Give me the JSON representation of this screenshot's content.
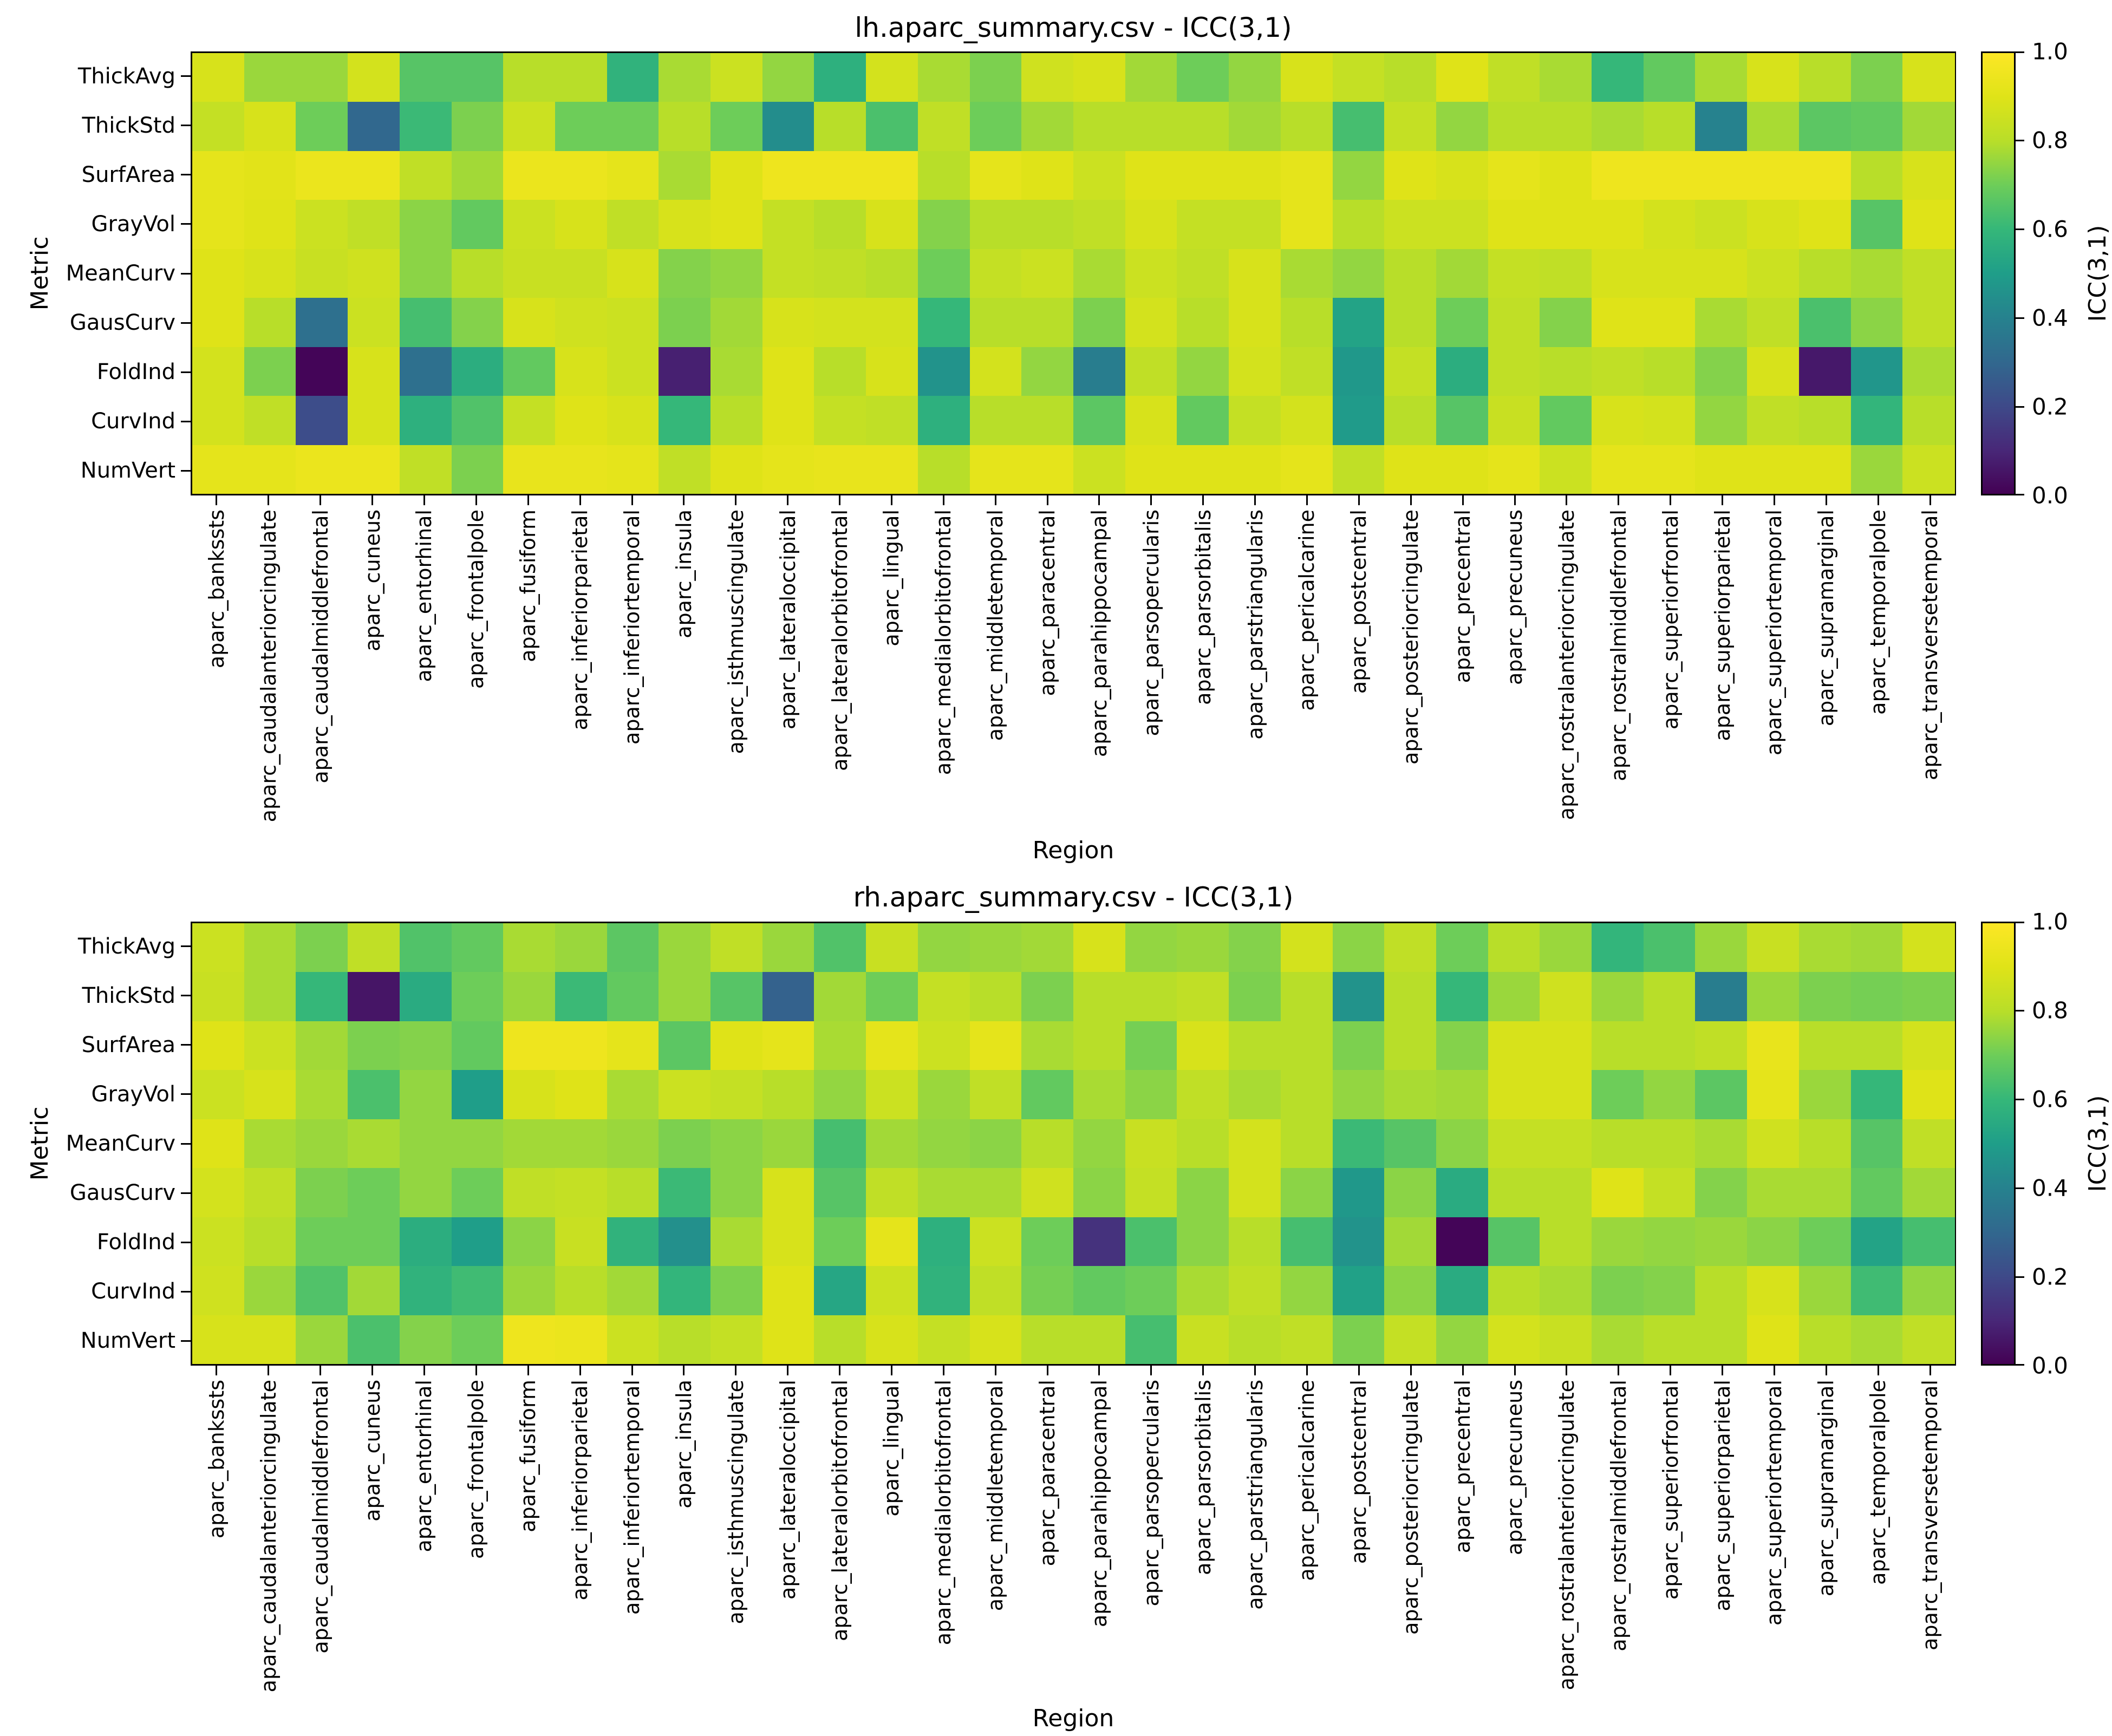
{
  "colorbar_ticks_display": [
    "0.0",
    "0.2",
    "0.4",
    "0.6",
    "0.8",
    "1.0"
  ],
  "colormap_stops": [
    {
      "t": 0.0,
      "hex": "#440154"
    },
    {
      "t": 0.1,
      "hex": "#482878"
    },
    {
      "t": 0.2,
      "hex": "#3e4a89"
    },
    {
      "t": 0.3,
      "hex": "#31688e"
    },
    {
      "t": 0.4,
      "hex": "#26828e"
    },
    {
      "t": 0.5,
      "hex": "#1f9e89"
    },
    {
      "t": 0.6,
      "hex": "#35b779"
    },
    {
      "t": 0.7,
      "hex": "#6dcd59"
    },
    {
      "t": 0.8,
      "hex": "#b8de29"
    },
    {
      "t": 0.9,
      "hex": "#dfe318"
    },
    {
      "t": 1.0,
      "hex": "#fde725"
    }
  ],
  "chart_data": [
    {
      "type": "heatmap",
      "title": "lh.aparc_summary.csv - ICC(3,1)",
      "xlabel": "Region",
      "ylabel": "Metric",
      "colorbar_label": "ICC(3,1)",
      "colormap": "viridis",
      "vmin": 0.0,
      "vmax": 1.0,
      "colorbar_ticks": [
        0.0,
        0.2,
        0.4,
        0.6,
        0.8,
        1.0
      ],
      "rows": [
        "ThickAvg",
        "ThickStd",
        "SurfArea",
        "GrayVol",
        "MeanCurv",
        "GausCurv",
        "FoldInd",
        "CurvInd",
        "NumVert"
      ],
      "columns": [
        "aparc_bankssts",
        "aparc_caudalanteriorcingulate",
        "aparc_caudalmiddlefrontal",
        "aparc_cuneus",
        "aparc_entorhinal",
        "aparc_frontalpole",
        "aparc_fusiform",
        "aparc_inferiorparietal",
        "aparc_inferiortemporal",
        "aparc_insula",
        "aparc_isthmuscingulate",
        "aparc_lateraloccipital",
        "aparc_lateralorbitofrontal",
        "aparc_lingual",
        "aparc_medialorbitofrontal",
        "aparc_middletemporal",
        "aparc_paracentral",
        "aparc_parahippocampal",
        "aparc_parsopercularis",
        "aparc_parsorbitalis",
        "aparc_parstriangularis",
        "aparc_pericalcarine",
        "aparc_postcentral",
        "aparc_posteriorcingulate",
        "aparc_precentral",
        "aparc_precuneus",
        "aparc_rostralanteriorcingulate",
        "aparc_rostralmiddlefrontal",
        "aparc_superiorfrontal",
        "aparc_superiorparietal",
        "aparc_superiortemporal",
        "aparc_supramarginal",
        "aparc_temporalpole",
        "aparc_transversetemporal"
      ],
      "values": [
        [
          0.88,
          0.76,
          0.76,
          0.87,
          0.66,
          0.66,
          0.8,
          0.8,
          0.58,
          0.78,
          0.85,
          0.75,
          0.57,
          0.87,
          0.78,
          0.72,
          0.86,
          0.88,
          0.77,
          0.7,
          0.75,
          0.88,
          0.83,
          0.8,
          0.9,
          0.82,
          0.78,
          0.6,
          0.68,
          0.78,
          0.88,
          0.8,
          0.72,
          0.88
        ],
        [
          0.83,
          0.88,
          0.7,
          0.3,
          0.61,
          0.72,
          0.85,
          0.7,
          0.7,
          0.8,
          0.7,
          0.44,
          0.8,
          0.64,
          0.82,
          0.7,
          0.77,
          0.8,
          0.8,
          0.8,
          0.77,
          0.8,
          0.63,
          0.83,
          0.75,
          0.8,
          0.8,
          0.78,
          0.8,
          0.4,
          0.78,
          0.67,
          0.68,
          0.77
        ],
        [
          0.92,
          0.91,
          0.94,
          0.94,
          0.82,
          0.77,
          0.94,
          0.94,
          0.92,
          0.78,
          0.9,
          0.95,
          0.95,
          0.95,
          0.8,
          0.92,
          0.9,
          0.85,
          0.9,
          0.9,
          0.9,
          0.92,
          0.75,
          0.9,
          0.88,
          0.92,
          0.9,
          0.95,
          0.95,
          0.95,
          0.95,
          0.95,
          0.8,
          0.88
        ],
        [
          0.92,
          0.9,
          0.85,
          0.82,
          0.74,
          0.68,
          0.85,
          0.88,
          0.82,
          0.88,
          0.9,
          0.83,
          0.8,
          0.88,
          0.73,
          0.8,
          0.8,
          0.82,
          0.88,
          0.83,
          0.83,
          0.92,
          0.8,
          0.85,
          0.85,
          0.9,
          0.9,
          0.9,
          0.87,
          0.85,
          0.88,
          0.9,
          0.66,
          0.9
        ],
        [
          0.9,
          0.88,
          0.84,
          0.86,
          0.74,
          0.8,
          0.84,
          0.84,
          0.88,
          0.73,
          0.75,
          0.83,
          0.82,
          0.8,
          0.7,
          0.83,
          0.85,
          0.78,
          0.85,
          0.82,
          0.88,
          0.78,
          0.75,
          0.8,
          0.77,
          0.83,
          0.82,
          0.88,
          0.88,
          0.88,
          0.85,
          0.8,
          0.78,
          0.82
        ],
        [
          0.9,
          0.8,
          0.33,
          0.85,
          0.63,
          0.73,
          0.88,
          0.86,
          0.85,
          0.72,
          0.77,
          0.88,
          0.87,
          0.87,
          0.6,
          0.8,
          0.8,
          0.72,
          0.87,
          0.8,
          0.88,
          0.8,
          0.52,
          0.8,
          0.7,
          0.82,
          0.73,
          0.9,
          0.9,
          0.78,
          0.82,
          0.64,
          0.74,
          0.82
        ],
        [
          0.87,
          0.72,
          0.01,
          0.88,
          0.33,
          0.56,
          0.68,
          0.88,
          0.85,
          0.08,
          0.78,
          0.9,
          0.8,
          0.88,
          0.46,
          0.87,
          0.75,
          0.38,
          0.82,
          0.75,
          0.87,
          0.82,
          0.48,
          0.83,
          0.56,
          0.82,
          0.8,
          0.82,
          0.8,
          0.73,
          0.88,
          0.06,
          0.47,
          0.78
        ],
        [
          0.87,
          0.82,
          0.21,
          0.88,
          0.57,
          0.65,
          0.83,
          0.9,
          0.88,
          0.6,
          0.8,
          0.9,
          0.83,
          0.82,
          0.57,
          0.8,
          0.8,
          0.67,
          0.88,
          0.68,
          0.83,
          0.87,
          0.49,
          0.8,
          0.66,
          0.84,
          0.68,
          0.88,
          0.87,
          0.75,
          0.82,
          0.8,
          0.59,
          0.8
        ],
        [
          0.92,
          0.92,
          0.94,
          0.94,
          0.82,
          0.72,
          0.93,
          0.93,
          0.92,
          0.82,
          0.9,
          0.92,
          0.93,
          0.93,
          0.8,
          0.92,
          0.92,
          0.85,
          0.9,
          0.9,
          0.9,
          0.92,
          0.82,
          0.9,
          0.9,
          0.92,
          0.85,
          0.92,
          0.92,
          0.9,
          0.9,
          0.9,
          0.76,
          0.85
        ]
      ]
    },
    {
      "type": "heatmap",
      "title": "rh.aparc_summary.csv - ICC(3,1)",
      "xlabel": "Region",
      "ylabel": "Metric",
      "colorbar_label": "ICC(3,1)",
      "colormap": "viridis",
      "vmin": 0.0,
      "vmax": 1.0,
      "colorbar_ticks": [
        0.0,
        0.2,
        0.4,
        0.6,
        0.8,
        1.0
      ],
      "rows": [
        "ThickAvg",
        "ThickStd",
        "SurfArea",
        "GrayVol",
        "MeanCurv",
        "GausCurv",
        "FoldInd",
        "CurvInd",
        "NumVert"
      ],
      "columns": [
        "aparc_bankssts",
        "aparc_caudalanteriorcingulate",
        "aparc_caudalmiddlefrontal",
        "aparc_cuneus",
        "aparc_entorhinal",
        "aparc_frontalpole",
        "aparc_fusiform",
        "aparc_inferiorparietal",
        "aparc_inferiortemporal",
        "aparc_insula",
        "aparc_isthmuscingulate",
        "aparc_lateraloccipital",
        "aparc_lateralorbitofrontal",
        "aparc_lingual",
        "aparc_medialorbitofrontal",
        "aparc_middletemporal",
        "aparc_paracentral",
        "aparc_parahippocampal",
        "aparc_parsopercularis",
        "aparc_parsorbitalis",
        "aparc_parstriangularis",
        "aparc_pericalcarine",
        "aparc_postcentral",
        "aparc_posteriorcingulate",
        "aparc_precentral",
        "aparc_precuneus",
        "aparc_rostralanteriorcingulate",
        "aparc_rostralmiddlefrontal",
        "aparc_superiorfrontal",
        "aparc_superiorparietal",
        "aparc_superiortemporal",
        "aparc_supramarginal",
        "aparc_temporalpole",
        "aparc_transversetemporal"
      ],
      "values": [
        [
          0.85,
          0.78,
          0.72,
          0.82,
          0.65,
          0.68,
          0.78,
          0.76,
          0.67,
          0.76,
          0.82,
          0.76,
          0.65,
          0.84,
          0.75,
          0.76,
          0.77,
          0.88,
          0.75,
          0.76,
          0.73,
          0.87,
          0.74,
          0.82,
          0.7,
          0.8,
          0.76,
          0.59,
          0.64,
          0.76,
          0.84,
          0.78,
          0.77,
          0.87
        ],
        [
          0.84,
          0.78,
          0.6,
          0.05,
          0.55,
          0.7,
          0.76,
          0.61,
          0.68,
          0.76,
          0.66,
          0.28,
          0.77,
          0.7,
          0.83,
          0.8,
          0.72,
          0.8,
          0.8,
          0.82,
          0.72,
          0.8,
          0.46,
          0.8,
          0.6,
          0.76,
          0.86,
          0.76,
          0.8,
          0.38,
          0.76,
          0.72,
          0.71,
          0.72
        ],
        [
          0.9,
          0.85,
          0.77,
          0.72,
          0.73,
          0.68,
          0.95,
          0.95,
          0.92,
          0.67,
          0.9,
          0.92,
          0.78,
          0.92,
          0.85,
          0.92,
          0.78,
          0.8,
          0.71,
          0.88,
          0.8,
          0.8,
          0.72,
          0.8,
          0.73,
          0.88,
          0.88,
          0.8,
          0.8,
          0.82,
          0.93,
          0.8,
          0.8,
          0.87
        ],
        [
          0.85,
          0.88,
          0.78,
          0.64,
          0.75,
          0.5,
          0.88,
          0.9,
          0.78,
          0.85,
          0.83,
          0.8,
          0.75,
          0.85,
          0.76,
          0.82,
          0.68,
          0.78,
          0.74,
          0.82,
          0.78,
          0.8,
          0.75,
          0.78,
          0.77,
          0.88,
          0.88,
          0.7,
          0.75,
          0.67,
          0.92,
          0.76,
          0.6,
          0.9
        ],
        [
          0.9,
          0.78,
          0.76,
          0.78,
          0.75,
          0.75,
          0.77,
          0.77,
          0.76,
          0.72,
          0.74,
          0.76,
          0.63,
          0.77,
          0.75,
          0.74,
          0.8,
          0.75,
          0.84,
          0.8,
          0.87,
          0.8,
          0.61,
          0.66,
          0.74,
          0.83,
          0.83,
          0.8,
          0.8,
          0.78,
          0.86,
          0.8,
          0.66,
          0.82
        ],
        [
          0.87,
          0.82,
          0.72,
          0.7,
          0.75,
          0.7,
          0.82,
          0.83,
          0.8,
          0.61,
          0.74,
          0.88,
          0.66,
          0.82,
          0.78,
          0.78,
          0.86,
          0.74,
          0.83,
          0.74,
          0.87,
          0.74,
          0.48,
          0.74,
          0.55,
          0.8,
          0.8,
          0.9,
          0.83,
          0.73,
          0.78,
          0.78,
          0.68,
          0.77
        ],
        [
          0.85,
          0.8,
          0.7,
          0.7,
          0.56,
          0.5,
          0.74,
          0.84,
          0.58,
          0.45,
          0.78,
          0.88,
          0.7,
          0.92,
          0.57,
          0.85,
          0.7,
          0.13,
          0.64,
          0.74,
          0.8,
          0.63,
          0.46,
          0.77,
          0.01,
          0.66,
          0.8,
          0.76,
          0.75,
          0.76,
          0.74,
          0.7,
          0.52,
          0.63
        ],
        [
          0.86,
          0.76,
          0.65,
          0.77,
          0.58,
          0.62,
          0.76,
          0.8,
          0.77,
          0.59,
          0.72,
          0.9,
          0.53,
          0.85,
          0.58,
          0.82,
          0.71,
          0.68,
          0.7,
          0.78,
          0.82,
          0.75,
          0.51,
          0.74,
          0.55,
          0.8,
          0.78,
          0.72,
          0.73,
          0.8,
          0.88,
          0.76,
          0.62,
          0.75
        ],
        [
          0.88,
          0.88,
          0.76,
          0.64,
          0.73,
          0.7,
          0.95,
          0.94,
          0.85,
          0.8,
          0.83,
          0.9,
          0.8,
          0.88,
          0.83,
          0.88,
          0.8,
          0.8,
          0.63,
          0.84,
          0.8,
          0.82,
          0.72,
          0.83,
          0.75,
          0.87,
          0.84,
          0.78,
          0.8,
          0.8,
          0.9,
          0.8,
          0.78,
          0.82
        ]
      ]
    }
  ]
}
